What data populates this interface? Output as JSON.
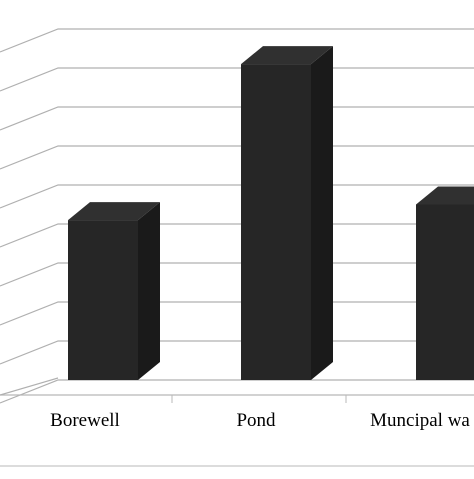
{
  "chart_data": {
    "type": "bar",
    "three_d": true,
    "categories": [
      "Borewell",
      "Pond",
      "Muncipal wa"
    ],
    "values": [
      4.1,
      8.1,
      4.5
    ],
    "ylim": [
      0,
      9
    ],
    "gridlines": 9,
    "grid": true,
    "legend": "none",
    "title": "",
    "xlabel": "",
    "ylabel": "",
    "colors": {
      "bar_front": "#262626",
      "bar_side": "#1a1a1a",
      "bar_top": "#303030",
      "grid": "#b0b0b0",
      "axis": "#b8b8b8",
      "text": "#000000"
    }
  }
}
